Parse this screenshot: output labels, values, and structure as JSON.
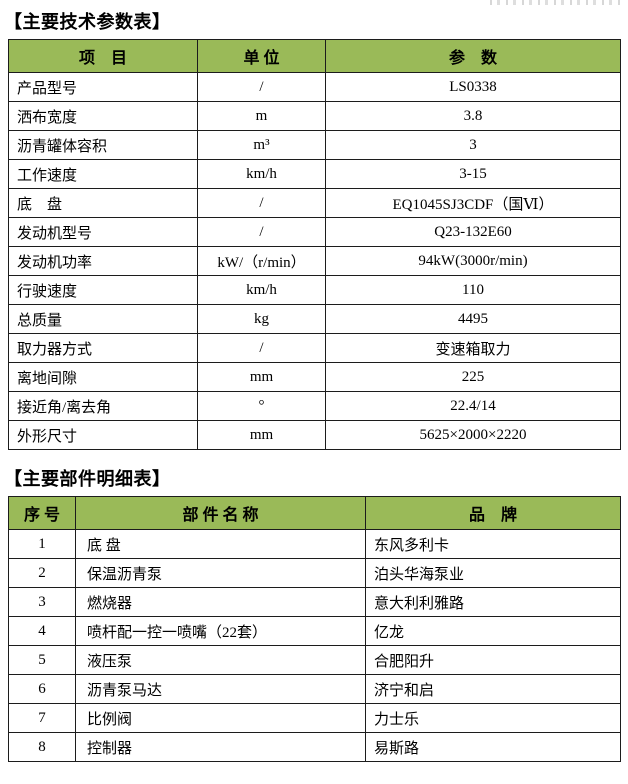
{
  "titles": {
    "params": "【主要技术参数表】",
    "components": "【主要部件明细表】"
  },
  "colors": {
    "header_bg": "#9aba58",
    "border": "#1c1c1c",
    "text": "#000000"
  },
  "params_table": {
    "headers": {
      "item": "项　目",
      "unit": "单 位",
      "value": "参　数"
    },
    "rows": [
      {
        "item": "产品型号",
        "unit": "/",
        "value": "LS0338"
      },
      {
        "item": "洒布宽度",
        "unit": "m",
        "value": "3.8"
      },
      {
        "item": "沥青罐体容积",
        "unit": "m³",
        "value": "3"
      },
      {
        "item": "工作速度",
        "unit": "km/h",
        "value": "3-15"
      },
      {
        "item": "底　盘",
        "unit": "/",
        "value": "EQ1045SJ3CDF（国Ⅵ）"
      },
      {
        "item": "发动机型号",
        "unit": "/",
        "value": "Q23-132E60"
      },
      {
        "item": "发动机功率",
        "unit": "kW/（r/min）",
        "value": "94kW(3000r/min)"
      },
      {
        "item": "行驶速度",
        "unit": "km/h",
        "value": "110"
      },
      {
        "item": "总质量",
        "unit": "kg",
        "value": "4495"
      },
      {
        "item": "取力器方式",
        "unit": "/",
        "value": "变速箱取力"
      },
      {
        "item": "离地间隙",
        "unit": "mm",
        "value": "225"
      },
      {
        "item": "接近角/离去角",
        "unit": "°",
        "value": "22.4/14"
      },
      {
        "item": "外形尺寸",
        "unit": "mm",
        "value": "5625×2000×2220"
      }
    ]
  },
  "components_table": {
    "headers": {
      "no": "序 号",
      "name": "部 件 名 称",
      "brand": "品　牌"
    },
    "rows": [
      {
        "no": "1",
        "name": "底 盘",
        "brand": "东风多利卡"
      },
      {
        "no": "2",
        "name": "保温沥青泵",
        "brand": "泊头华海泵业"
      },
      {
        "no": "3",
        "name": "燃烧器",
        "brand": "意大利利雅路"
      },
      {
        "no": "4",
        "name": "喷杆配一控一喷嘴（22套）",
        "brand": "亿龙"
      },
      {
        "no": "5",
        "name": "液压泵",
        "brand": "合肥阳升"
      },
      {
        "no": "6",
        "name": "沥青泵马达",
        "brand": "济宁和启"
      },
      {
        "no": "7",
        "name": "比例阀",
        "brand": "力士乐"
      },
      {
        "no": "8",
        "name": "控制器",
        "brand": "易斯路"
      }
    ]
  }
}
